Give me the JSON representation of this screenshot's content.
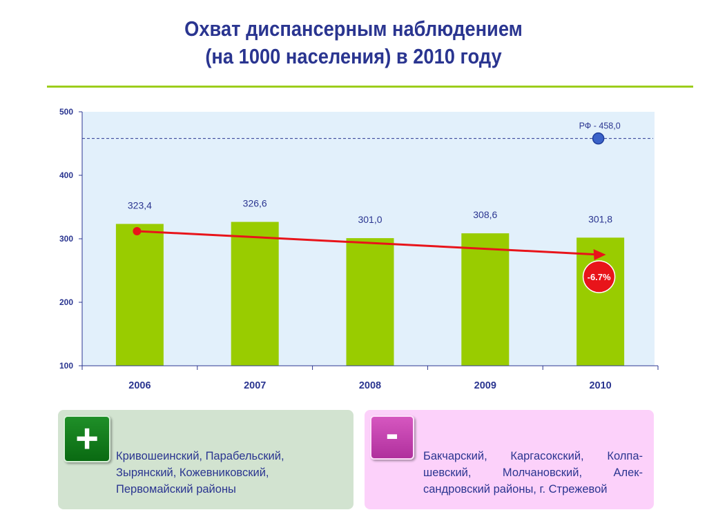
{
  "title": {
    "line1": "Охват диспансерным наблюдением",
    "line2": "(на 1000 населения) в 2010 году"
  },
  "chart_data": {
    "type": "bar",
    "categories": [
      "2006",
      "2007",
      "2008",
      "2009",
      "2010"
    ],
    "values": [
      323.4,
      326.6,
      301.0,
      308.6,
      301.8
    ],
    "value_labels": [
      "323,4",
      "326,6",
      "301,0",
      "308,6",
      "301,8"
    ],
    "ylim": [
      100,
      500
    ],
    "yticks": [
      100,
      200,
      300,
      400,
      500
    ],
    "reference": {
      "label": "РФ - 458,0",
      "value": 458.0
    },
    "trend": {
      "from": 312,
      "to": 275,
      "label": "-6.7%"
    },
    "grid": false,
    "colors": {
      "bar": "#99cc00",
      "plot_bg": "#e2f0fb",
      "trend": "#e8141a",
      "reference": "#3a62c8",
      "text": "#2a3590"
    }
  },
  "panels": {
    "plus": {
      "sign": "+",
      "lines": [
        "Кривошеинский, Парабельский,",
        "Зырянский, Кожевниковский,",
        "Первомайский районы"
      ]
    },
    "minus": {
      "sign": "-",
      "text": "Бакчарский, Каргасокский, Колпа-шевский, Молчановский, Алек-сандровский районы, г. Стрежевой"
    }
  }
}
